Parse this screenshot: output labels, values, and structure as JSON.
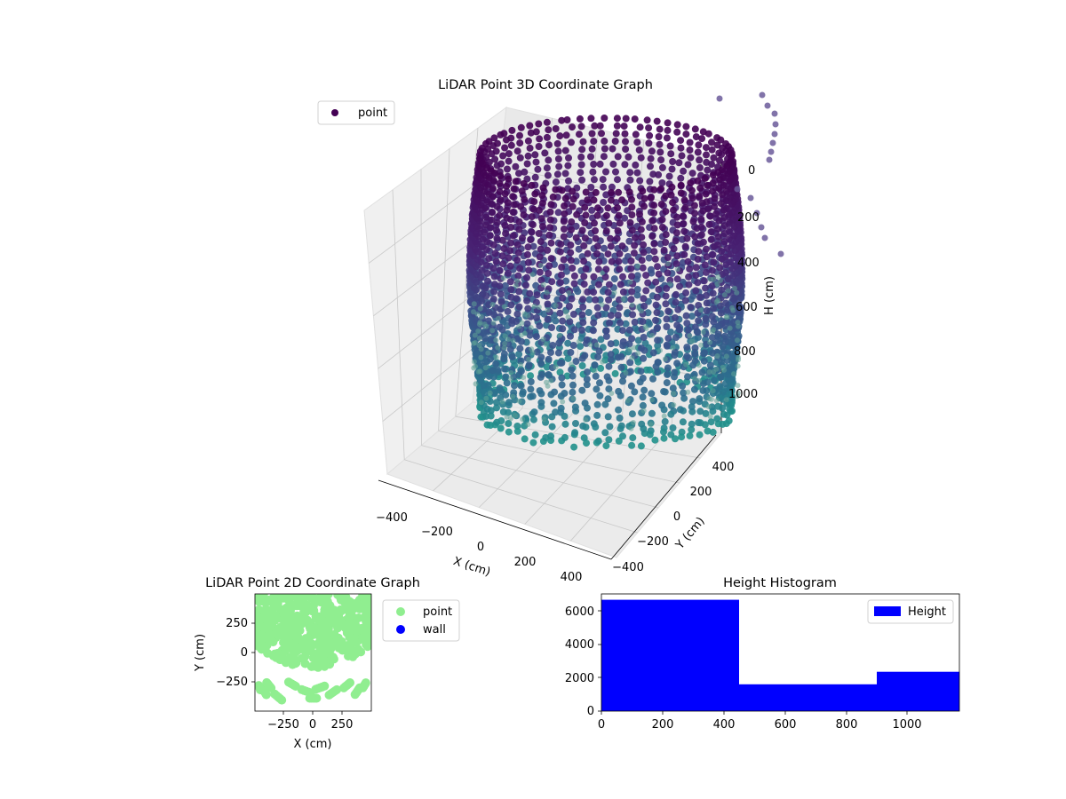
{
  "chart_data": [
    {
      "type": "scatter",
      "subtype": "3d",
      "title": "LiDAR Point 3D Coordinate Graph",
      "xlabel": "X (cm)",
      "ylabel": "Y (cm)",
      "zlabel": "H (cm)",
      "xlim": [
        -450,
        450
      ],
      "ylim": [
        -450,
        450
      ],
      "zlim": [
        1100,
        0
      ],
      "xticks": [
        "−400",
        "−200",
        "0",
        "200",
        "400"
      ],
      "yticks": [
        "−400",
        "−200",
        "0",
        "200",
        "400"
      ],
      "zticks": [
        "0",
        "200",
        "400",
        "600",
        "800",
        "1000"
      ],
      "legend": {
        "entries": [
          "point"
        ],
        "placement": "top-left"
      },
      "grid": true,
      "series": [
        {
          "name": "point",
          "shape": "cylindrical wall of points, radius approx. 430 cm, heights approx. 0 to 1100 cm, colored by height (viridis)",
          "radius": 430,
          "z_range": [
            0,
            1100
          ]
        }
      ],
      "colormap_colors": [
        "#440154",
        "#3b528b",
        "#21918c",
        "#5ec962"
      ],
      "outlier_arc_color": "#6b5b9a"
    },
    {
      "type": "scatter",
      "title": "LiDAR Point 2D Coordinate Graph",
      "xlabel": "X (cm)",
      "ylabel": "Y (cm)",
      "xlim": [
        -500,
        500
      ],
      "ylim": [
        -500,
        500
      ],
      "xticks": [
        "−250",
        "0",
        "250"
      ],
      "yticks": [
        "−250",
        "0",
        "250"
      ],
      "legend": {
        "entries": [
          "point",
          "wall"
        ],
        "placement": "outside right"
      },
      "series": [
        {
          "name": "point",
          "color": "#90ee90",
          "description": "dense filled region covering the top of the view plus clusters near the bottom"
        },
        {
          "name": "wall",
          "color": "#0000ff"
        }
      ]
    },
    {
      "type": "bar",
      "subtype": "histogram",
      "title": "Height Histogram",
      "xlim": [
        0,
        1170
      ],
      "ylim": [
        0,
        7000
      ],
      "xticks": [
        "0",
        "200",
        "400",
        "600",
        "800",
        "1000"
      ],
      "yticks": [
        "0",
        "2000",
        "4000",
        "6000"
      ],
      "legend": {
        "entries": [
          "Height"
        ],
        "placement": "top-right"
      },
      "series": [
        {
          "name": "Height",
          "color": "#0000ff",
          "bins": [
            {
              "start": 0,
              "end": 450,
              "count": 6650
            },
            {
              "start": 450,
              "end": 900,
              "count": 1600
            },
            {
              "start": 900,
              "end": 1170,
              "count": 2350
            }
          ]
        }
      ]
    }
  ]
}
